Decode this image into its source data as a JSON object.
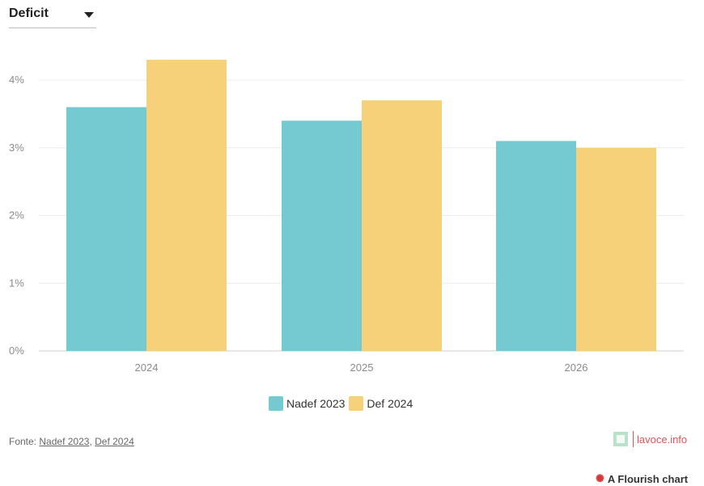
{
  "dropdown": {
    "selected": "Deficit"
  },
  "chart_data": {
    "type": "bar",
    "categories": [
      "2024",
      "2025",
      "2026"
    ],
    "series": [
      {
        "name": "Nadef 2023",
        "values": [
          3.6,
          3.4,
          3.1
        ],
        "color": "#75c9d1"
      },
      {
        "name": "Def 2024",
        "values": [
          4.3,
          3.7,
          3.0
        ],
        "color": "#f6d17a"
      }
    ],
    "y_ticks": [
      "0%",
      "1%",
      "2%",
      "3%",
      "4%"
    ],
    "ylim": [
      0,
      4.6
    ],
    "grid": true,
    "legend_placement": "bottom-center"
  },
  "source": {
    "prefix": "Fonte:",
    "link1": "Nadef 2023",
    "separator": ",",
    "link2": "Def 2024"
  },
  "brand": {
    "text": "lavoce.info"
  },
  "flourish": {
    "icon": "flourish-logo-icon",
    "text": "A Flourish chart"
  }
}
